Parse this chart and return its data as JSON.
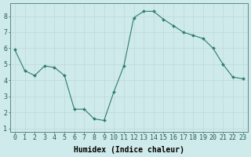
{
  "x": [
    0,
    1,
    2,
    3,
    4,
    5,
    6,
    7,
    8,
    9,
    10,
    11,
    12,
    13,
    14,
    15,
    16,
    17,
    18,
    19,
    20,
    21,
    22,
    23
  ],
  "y": [
    5.9,
    4.6,
    4.3,
    4.9,
    4.8,
    4.3,
    2.2,
    2.2,
    1.6,
    1.5,
    3.3,
    4.9,
    7.9,
    8.3,
    8.3,
    7.8,
    7.4,
    7.0,
    6.8,
    6.6,
    6.0,
    5.0,
    4.2,
    4.1
  ],
  "line_color": "#2e7d6e",
  "marker": "D",
  "marker_size": 2.0,
  "bg_color": "#ceeaea",
  "grid_color": "#c0d8d8",
  "xlabel": "Humidex (Indice chaleur)",
  "xlabel_fontsize": 7,
  "tick_fontsize": 6,
  "ylim": [
    0.8,
    8.8
  ],
  "xlim": [
    -0.5,
    23.5
  ],
  "yticks": [
    1,
    2,
    3,
    4,
    5,
    6,
    7,
    8
  ],
  "xticks": [
    0,
    1,
    2,
    3,
    4,
    5,
    6,
    7,
    8,
    9,
    10,
    11,
    12,
    13,
    14,
    15,
    16,
    17,
    18,
    19,
    20,
    21,
    22,
    23
  ]
}
